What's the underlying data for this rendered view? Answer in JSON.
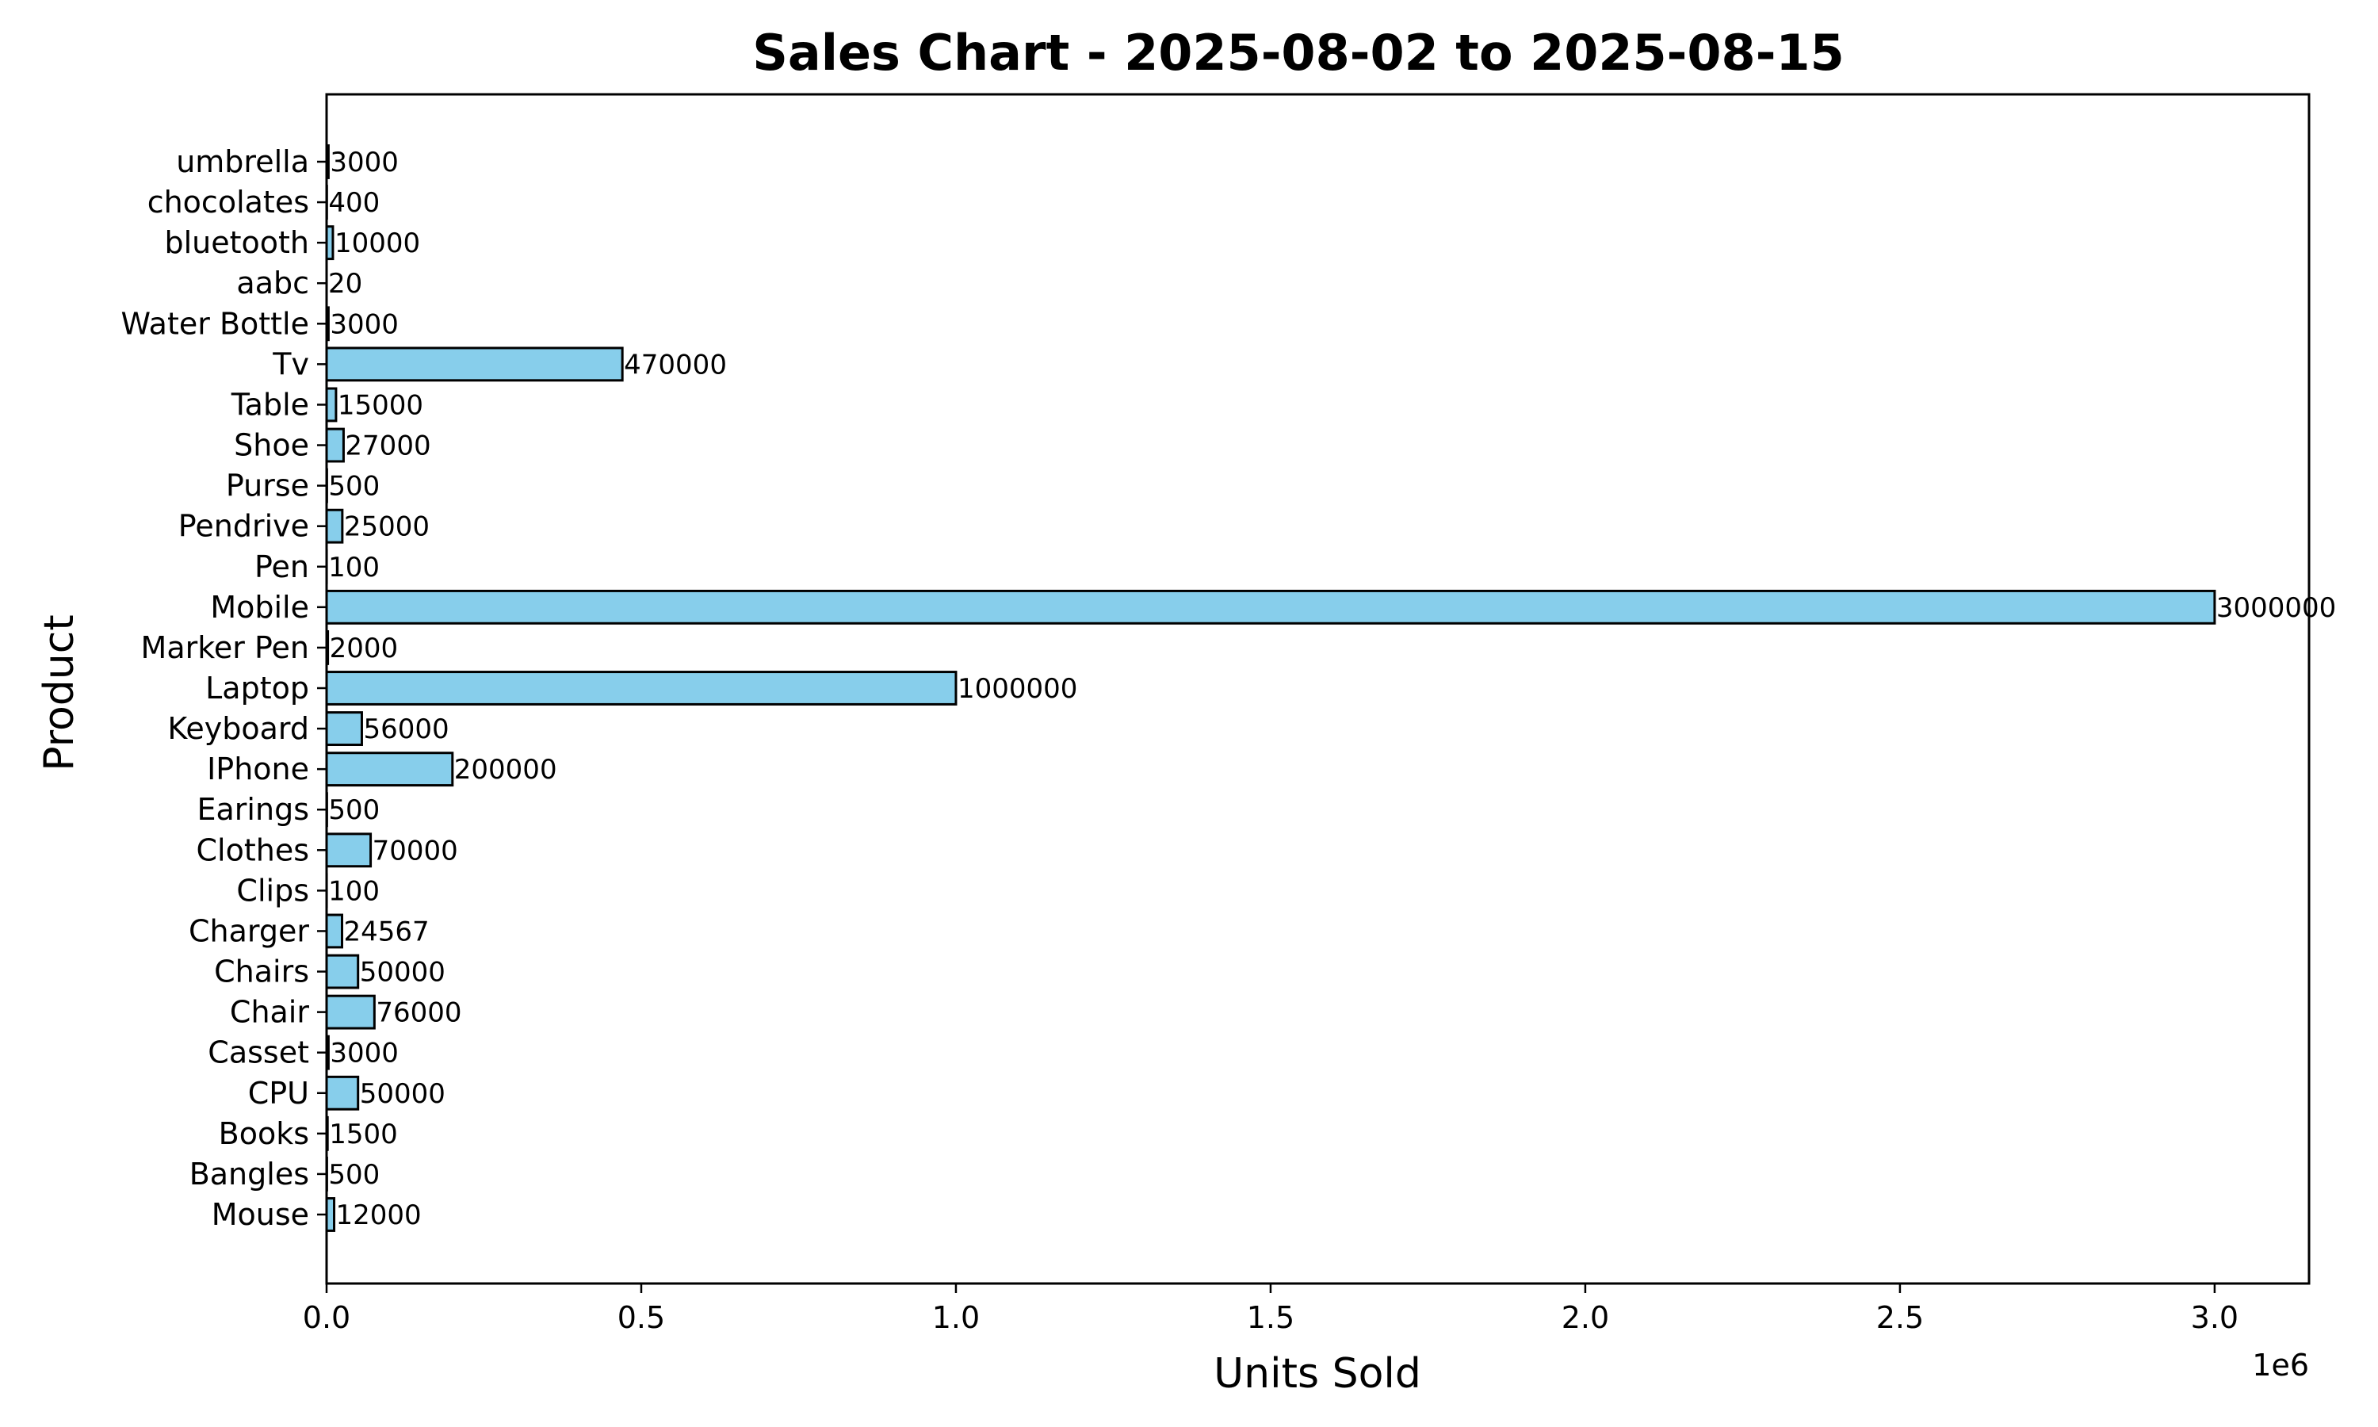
{
  "chart_data": {
    "type": "bar",
    "orientation": "horizontal",
    "title": "Sales Chart - 2025-08-02 to 2025-08-15",
    "xlabel": "Units Sold",
    "ylabel": "Product",
    "x_offset_label": "1e6",
    "xlim": [
      0,
      3150000
    ],
    "x_ticks": [
      0,
      500000,
      1000000,
      1500000,
      2000000,
      2500000,
      3000000
    ],
    "x_tick_labels": [
      "0.0",
      "0.5",
      "1.0",
      "1.5",
      "2.0",
      "2.5",
      "3.0"
    ],
    "grid": false,
    "bar_color": "#87ceeb",
    "edge_color": "#000000",
    "categories": [
      "Mouse",
      "Bangles",
      "Books",
      "CPU",
      "Casset",
      "Chair",
      "Chairs",
      "Charger",
      "Clips",
      "Clothes",
      "Earings",
      "IPhone",
      "Keyboard",
      "Laptop",
      "Marker Pen",
      "Mobile",
      "Pen",
      "Pendrive",
      "Purse",
      "Shoe",
      "Table",
      "Tv",
      "Water Bottle",
      "aabc",
      "bluetooth",
      "chocolates",
      "umbrella"
    ],
    "values": [
      12000,
      500,
      1500,
      50000,
      3000,
      76000,
      50000,
      24567,
      100,
      70000,
      500,
      200000,
      56000,
      1000000,
      2000,
      3000000,
      100,
      25000,
      500,
      27000,
      15000,
      470000,
      3000,
      20,
      10000,
      400,
      3000
    ],
    "value_labels": [
      "12000",
      "500",
      "1500",
      "50000",
      "3000",
      "76000",
      "50000",
      "24567",
      "100",
      "70000",
      "500",
      "200000",
      "56000",
      "1000000",
      "2000",
      "3000000",
      "100",
      "25000",
      "500",
      "27000",
      "15000",
      "470000",
      "3000",
      "20",
      "10000",
      "400",
      "3000"
    ]
  }
}
